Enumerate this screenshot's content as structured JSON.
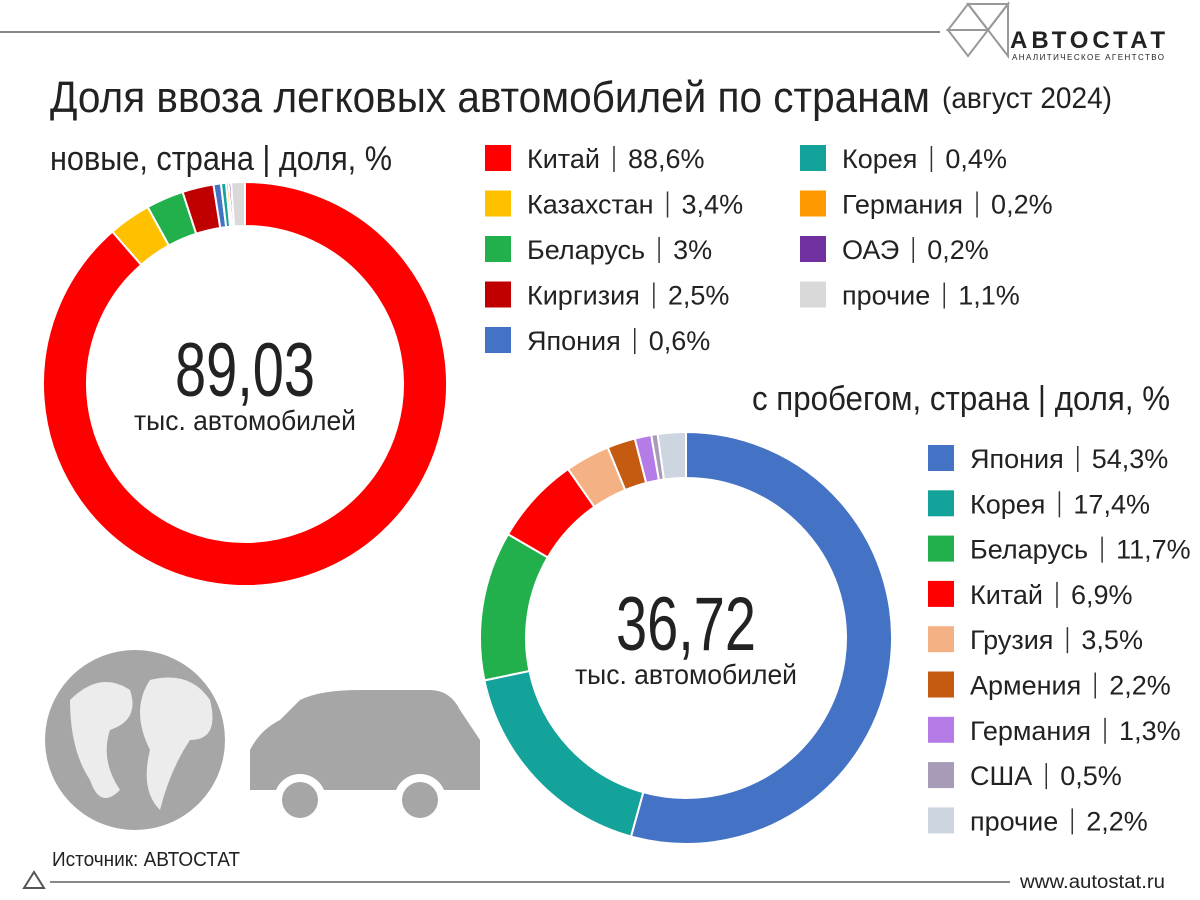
{
  "header": {
    "title": "Доля ввоза легковых автомобилей по странам",
    "period": "(август 2024)",
    "logo": "АВТОСТАТ",
    "logo_subtitle": "АНАЛИТИЧЕСКОЕ АГЕНТСТВО"
  },
  "footer": {
    "source": "Источник: АВТОСТАТ",
    "url": "www.autostat.ru"
  },
  "chart_data": [
    {
      "type": "pie",
      "donut": true,
      "subtitle": "новые, страна | доля, %",
      "categories": [
        "Китай",
        "Казахстан",
        "Беларусь",
        "Киргизия",
        "Япония",
        "Корея",
        "Германия",
        "ОАЭ",
        "прочие"
      ],
      "values": [
        88.6,
        3.4,
        3,
        2.5,
        0.6,
        0.4,
        0.2,
        0.2,
        1.1
      ],
      "value_labels": [
        "88,6%",
        "3,4%",
        "3%",
        "2,5%",
        "0,6%",
        "0,4%",
        "0,2%",
        "0,2%",
        "1,1%"
      ],
      "colors": [
        "#ff0000",
        "#ffc000",
        "#21b04b",
        "#c00000",
        "#4472c4",
        "#13a39a",
        "#ff9900",
        "#7030a0",
        "#d9d9d9"
      ],
      "total": {
        "value": 89.03,
        "label": "89,03"
      },
      "total_unit": "тыс. автомобилей"
    },
    {
      "type": "pie",
      "donut": true,
      "subtitle": "с пробегом, страна | доля, %",
      "categories": [
        "Япония",
        "Корея",
        "Беларусь",
        "Китай",
        "Грузия",
        "Армения",
        "Германия",
        "США",
        "прочие"
      ],
      "values": [
        54.3,
        17.4,
        11.7,
        6.9,
        3.5,
        2.2,
        1.3,
        0.5,
        2.2
      ],
      "value_labels": [
        "54,3%",
        "17,4%",
        "11,7%",
        "6,9%",
        "3,5%",
        "2,2%",
        "1,3%",
        "0,5%",
        "2,2%"
      ],
      "colors": [
        "#4472c4",
        "#13a39a",
        "#21b04b",
        "#ff0000",
        "#f4b183",
        "#c55a11",
        "#b57be6",
        "#a89bb8",
        "#ccd5e0"
      ],
      "total": {
        "value": 36.72,
        "label": "36,72"
      },
      "total_unit": "тыс. автомобилей"
    }
  ]
}
